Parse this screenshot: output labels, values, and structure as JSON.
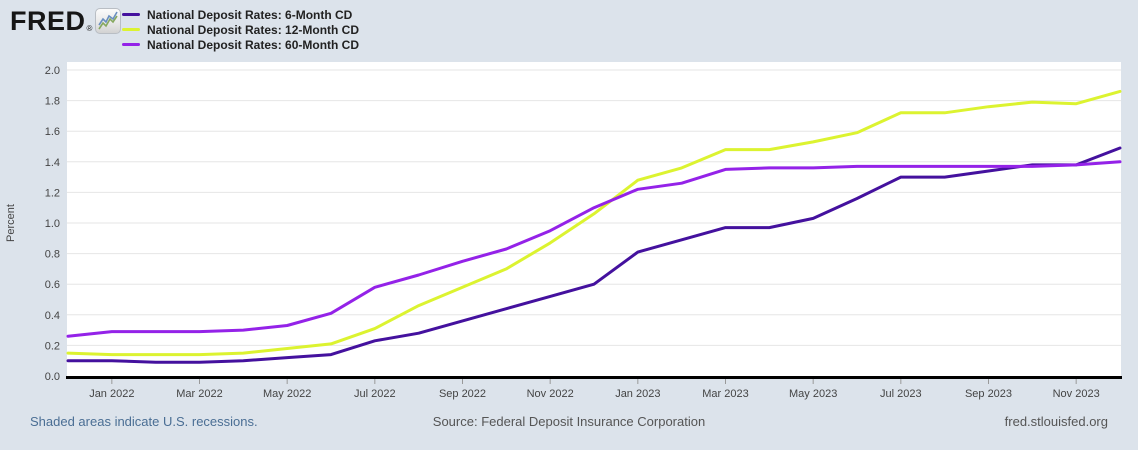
{
  "header": {
    "logo_text": "FRED",
    "registered_mark": "®",
    "logo_icon": "line-chart-icon",
    "legend": [
      {
        "label": "National Deposit Rates: 6-Month CD",
        "color": "#44119e"
      },
      {
        "label": "National Deposit Rates: 12-Month CD",
        "color": "#dcf330"
      },
      {
        "label": "National Deposit Rates: 60-Month CD",
        "color": "#9422e8"
      }
    ]
  },
  "chart_data": {
    "type": "line",
    "title": "",
    "xlabel": "",
    "ylabel": "Percent",
    "ylim": [
      0.0,
      2.0
    ],
    "y_ticks": [
      0.0,
      0.2,
      0.4,
      0.6,
      0.8,
      1.0,
      1.2,
      1.4,
      1.6,
      1.8,
      2.0
    ],
    "grid": true,
    "legend_position": "top-left",
    "x": [
      "Dec 2021",
      "Jan 2022",
      "Feb 2022",
      "Mar 2022",
      "Apr 2022",
      "May 2022",
      "Jun 2022",
      "Jul 2022",
      "Aug 2022",
      "Sep 2022",
      "Oct 2022",
      "Nov 2022",
      "Dec 2022",
      "Jan 2023",
      "Feb 2023",
      "Mar 2023",
      "Apr 2023",
      "May 2023",
      "Jun 2023",
      "Jul 2023",
      "Aug 2023",
      "Sep 2023",
      "Oct 2023",
      "Nov 2023",
      "Dec 2023"
    ],
    "x_tick_labels": [
      "Jan 2022",
      "Mar 2022",
      "May 2022",
      "Jul 2022",
      "Sep 2022",
      "Nov 2022",
      "Jan 2023",
      "Mar 2023",
      "May 2023",
      "Jul 2023",
      "Sep 2023",
      "Nov 2023"
    ],
    "series": [
      {
        "name": "National Deposit Rates: 6-Month CD",
        "color": "#44119e",
        "values": [
          0.1,
          0.1,
          0.09,
          0.09,
          0.1,
          0.12,
          0.14,
          0.23,
          0.28,
          0.36,
          0.44,
          0.52,
          0.6,
          0.81,
          0.89,
          0.97,
          0.97,
          1.03,
          1.16,
          1.3,
          1.3,
          1.34,
          1.38,
          1.38,
          1.49
        ]
      },
      {
        "name": "National Deposit Rates: 12-Month CD",
        "color": "#dcf330",
        "values": [
          0.15,
          0.14,
          0.14,
          0.14,
          0.15,
          0.18,
          0.21,
          0.31,
          0.46,
          0.58,
          0.7,
          0.87,
          1.06,
          1.28,
          1.36,
          1.48,
          1.48,
          1.53,
          1.59,
          1.72,
          1.72,
          1.76,
          1.79,
          1.78,
          1.86
        ]
      },
      {
        "name": "National Deposit Rates: 60-Month CD",
        "color": "#9422e8",
        "values": [
          0.26,
          0.29,
          0.29,
          0.29,
          0.3,
          0.33,
          0.41,
          0.58,
          0.66,
          0.75,
          0.83,
          0.95,
          1.1,
          1.22,
          1.26,
          1.35,
          1.36,
          1.36,
          1.37,
          1.37,
          1.37,
          1.37,
          1.37,
          1.38,
          1.4
        ]
      }
    ]
  },
  "footer": {
    "recession_note": "Shaded areas indicate U.S. recessions.",
    "source": "Source: Federal Deposit Insurance Corporation",
    "site": "fred.stlouisfed.org"
  },
  "colors": {
    "background": "#dce3eb",
    "plot_background": "#ffffff",
    "grid": "#e6e6e6",
    "axis": "#000000",
    "tick_text": "#444444",
    "tick_mark": "#999999",
    "footer_link": "#4a6e94",
    "footer_text": "#555555",
    "logo_icon_blue": "#6a8fc0",
    "logo_icon_green": "#86a85f"
  }
}
